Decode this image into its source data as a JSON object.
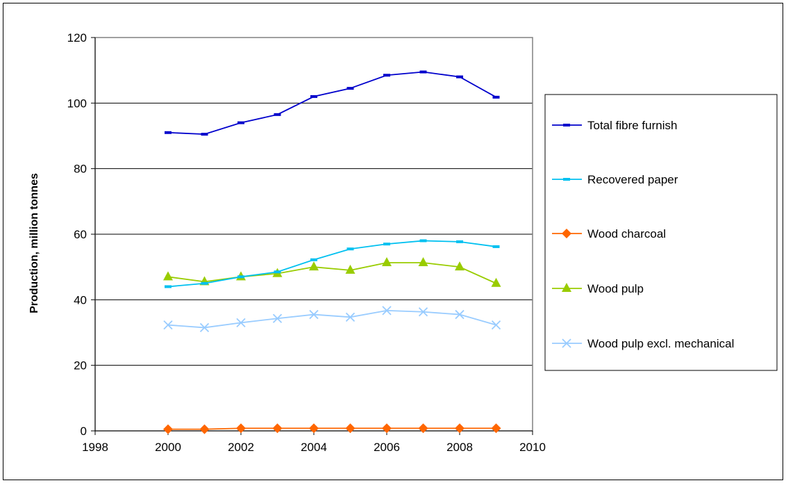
{
  "chart_data": {
    "type": "line",
    "title": "",
    "xlabel": "",
    "ylabel": "Production,  million tonnes",
    "xlim": [
      1998,
      2010
    ],
    "ylim": [
      0,
      120
    ],
    "x_ticks": [
      "1998",
      "2000",
      "2002",
      "2004",
      "2006",
      "2008",
      "2010"
    ],
    "y_ticks": [
      "0",
      "20",
      "40",
      "60",
      "80",
      "100",
      "120"
    ],
    "grid": "horizontal major gridlines",
    "legend_position": "right",
    "x": [
      2000,
      2001,
      2002,
      2003,
      2004,
      2005,
      2006,
      2007,
      2008,
      2009
    ],
    "series": [
      {
        "name": "Total fibre furnish",
        "color": "#0000cc",
        "marker": "square-dash",
        "values": [
          91,
          90.5,
          94,
          96.5,
          102,
          104.5,
          108.5,
          109.5,
          108,
          101.8
        ]
      },
      {
        "name": "Recovered paper",
        "color": "#00c0f0",
        "marker": "square-dash",
        "values": [
          44,
          45,
          47,
          48.5,
          52.2,
          55.5,
          57,
          58,
          57.7,
          56.2
        ]
      },
      {
        "name": "Wood charcoal",
        "color": "#ff6600",
        "marker": "diamond",
        "values": [
          0.5,
          0.5,
          0.8,
          0.8,
          0.8,
          0.8,
          0.8,
          0.8,
          0.8,
          0.8
        ]
      },
      {
        "name": "Wood pulp",
        "color": "#99cc00",
        "marker": "triangle",
        "values": [
          47,
          45.5,
          47,
          48,
          50,
          49,
          51.3,
          51.3,
          50,
          45
        ]
      },
      {
        "name": "Wood pulp excl. mechanical",
        "color": "#99ccff",
        "marker": "x",
        "values": [
          32.3,
          31.5,
          33,
          34.3,
          35.5,
          34.7,
          36.7,
          36.3,
          35.5,
          32.3
        ]
      }
    ]
  }
}
